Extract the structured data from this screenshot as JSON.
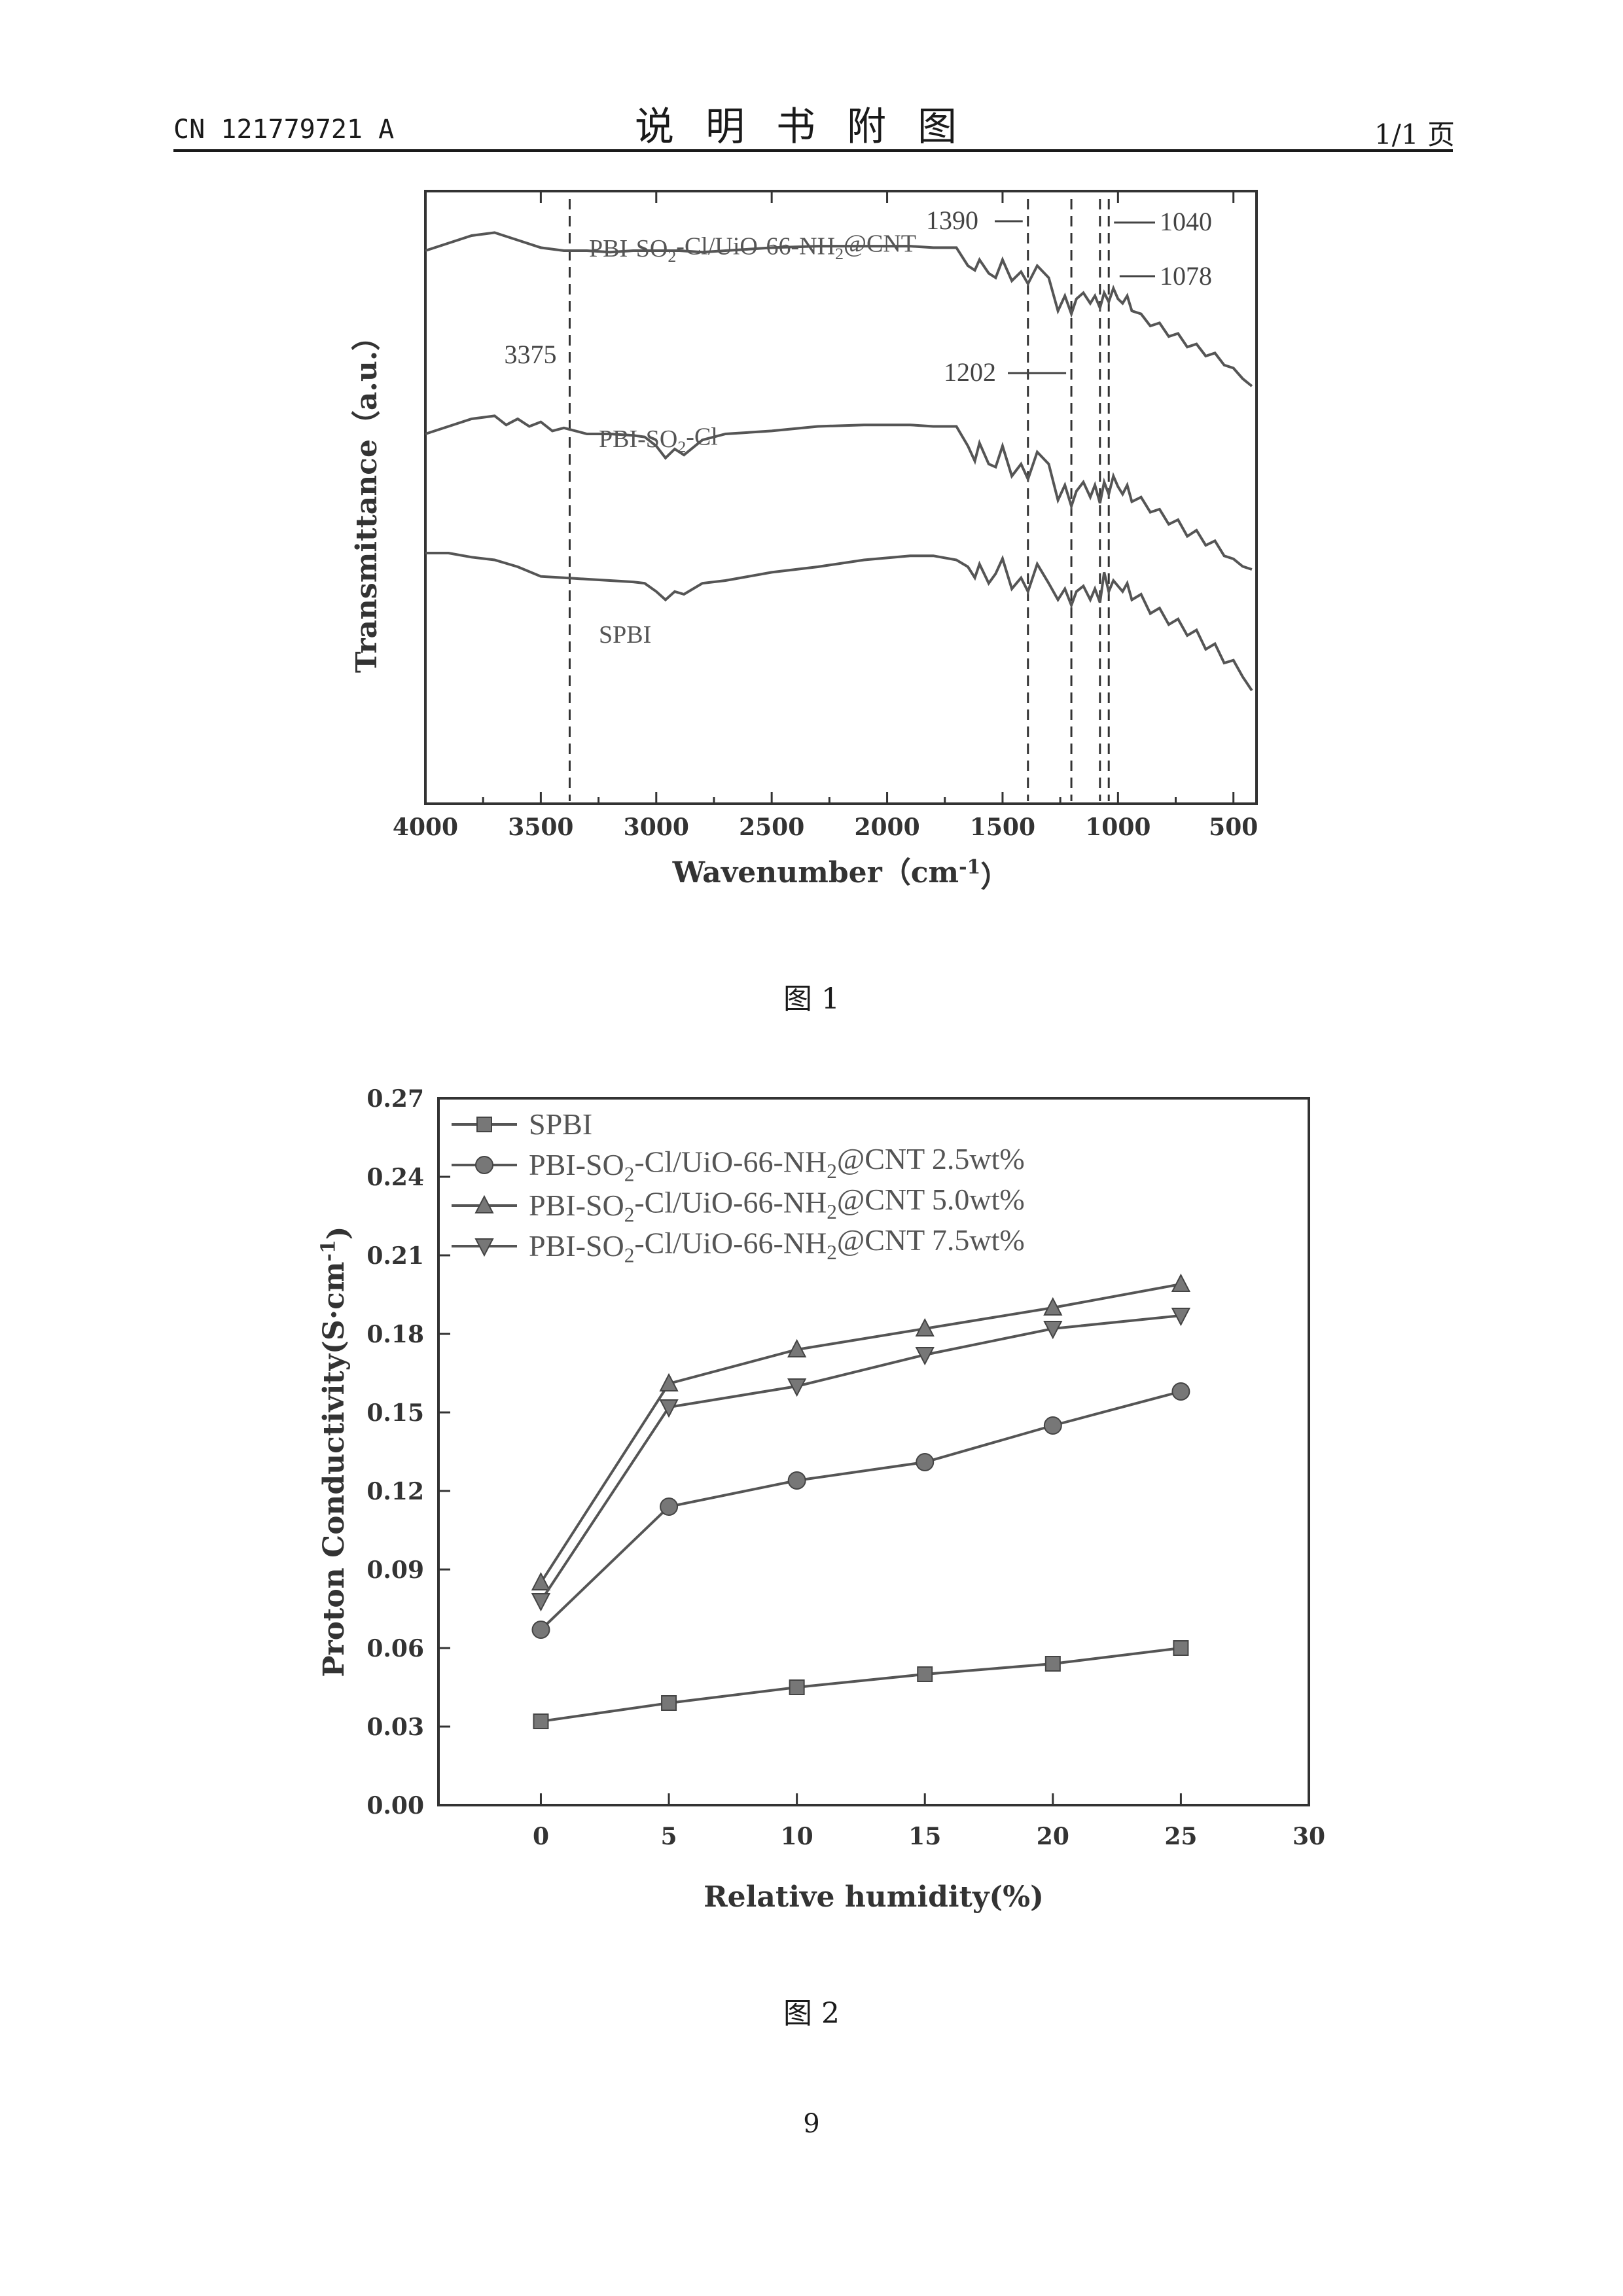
{
  "header": {
    "patent_number": "CN 121779721 A",
    "section_title": "说明书附图",
    "page_of": "1/1 页"
  },
  "figure1": {
    "caption": "图 1",
    "chart_data": {
      "type": "line",
      "title": "",
      "xlabel": "Wavenumber（cm⁻¹）",
      "ylabel": "Transmittance（a.u.）",
      "xlim": [
        4000,
        400
      ],
      "x_ticks": [
        4000,
        3500,
        3000,
        2500,
        2000,
        1500,
        1000,
        500
      ],
      "x_tick_labels": [
        "4000",
        "3500",
        "3000",
        "2500",
        "2000",
        "1500",
        "1000",
        "500"
      ],
      "reference_lines": [
        3375,
        1390,
        1202,
        1078,
        1040
      ],
      "annotations": [
        {
          "text": "3375",
          "x": 3375
        },
        {
          "text": "1390",
          "x": 1390
        },
        {
          "text": "1202",
          "x": 1202
        },
        {
          "text": "1078",
          "x": 1078
        },
        {
          "text": "1040",
          "x": 1040
        }
      ],
      "series": [
        {
          "name": "PBI-SO₂-Cl/UiO-66-NH₂@CNT",
          "x": [
            4000,
            3900,
            3800,
            3700,
            3600,
            3500,
            3400,
            3300,
            3200,
            3100,
            3000,
            2900,
            2800,
            2700,
            2500,
            2300,
            2100,
            1900,
            1800,
            1700,
            1650,
            1620,
            1600,
            1560,
            1530,
            1500,
            1460,
            1420,
            1390,
            1350,
            1300,
            1260,
            1230,
            1202,
            1180,
            1150,
            1120,
            1100,
            1078,
            1060,
            1040,
            1020,
            1000,
            980,
            960,
            940,
            900,
            860,
            820,
            780,
            740,
            700,
            660,
            620,
            580,
            540,
            500,
            460,
            420
          ],
          "y": [
            0.9,
            0.95,
            1.0,
            1.02,
            0.97,
            0.92,
            0.9,
            0.9,
            0.89,
            0.9,
            0.9,
            0.9,
            0.89,
            0.9,
            0.92,
            0.93,
            0.93,
            0.93,
            0.92,
            0.92,
            0.8,
            0.77,
            0.84,
            0.75,
            0.72,
            0.84,
            0.7,
            0.76,
            0.68,
            0.8,
            0.72,
            0.5,
            0.6,
            0.48,
            0.58,
            0.62,
            0.55,
            0.6,
            0.52,
            0.62,
            0.56,
            0.65,
            0.58,
            0.55,
            0.6,
            0.5,
            0.48,
            0.4,
            0.42,
            0.33,
            0.35,
            0.26,
            0.28,
            0.2,
            0.22,
            0.14,
            0.12,
            0.05,
            0.0
          ]
        },
        {
          "name": "PBI-SO₂-Cl",
          "x": [
            4000,
            3900,
            3800,
            3700,
            3650,
            3600,
            3550,
            3500,
            3450,
            3400,
            3300,
            3200,
            3100,
            3050,
            3000,
            2960,
            2920,
            2880,
            2800,
            2700,
            2500,
            2300,
            2100,
            1900,
            1800,
            1700,
            1650,
            1620,
            1600,
            1560,
            1530,
            1500,
            1460,
            1420,
            1390,
            1350,
            1300,
            1260,
            1230,
            1202,
            1180,
            1150,
            1120,
            1100,
            1078,
            1060,
            1040,
            1020,
            1000,
            980,
            960,
            940,
            900,
            860,
            820,
            780,
            740,
            700,
            660,
            620,
            580,
            540,
            500,
            460,
            420
          ],
          "y": [
            0.9,
            0.95,
            1.0,
            1.02,
            0.96,
            1.0,
            0.95,
            0.98,
            0.92,
            0.94,
            0.9,
            0.9,
            0.89,
            0.88,
            0.82,
            0.74,
            0.8,
            0.76,
            0.86,
            0.9,
            0.92,
            0.95,
            0.96,
            0.96,
            0.95,
            0.95,
            0.82,
            0.72,
            0.84,
            0.7,
            0.68,
            0.82,
            0.62,
            0.7,
            0.6,
            0.78,
            0.7,
            0.46,
            0.56,
            0.42,
            0.52,
            0.58,
            0.48,
            0.56,
            0.44,
            0.58,
            0.5,
            0.62,
            0.55,
            0.5,
            0.56,
            0.45,
            0.48,
            0.38,
            0.4,
            0.3,
            0.33,
            0.22,
            0.26,
            0.16,
            0.19,
            0.09,
            0.07,
            0.02,
            0.0
          ]
        },
        {
          "name": "SPBI",
          "x": [
            4000,
            3900,
            3800,
            3700,
            3600,
            3500,
            3400,
            3300,
            3200,
            3100,
            3050,
            3000,
            2960,
            2920,
            2880,
            2800,
            2700,
            2500,
            2300,
            2100,
            1900,
            1800,
            1700,
            1650,
            1620,
            1600,
            1560,
            1530,
            1500,
            1460,
            1420,
            1390,
            1350,
            1300,
            1260,
            1230,
            1202,
            1180,
            1150,
            1120,
            1100,
            1078,
            1060,
            1040,
            1020,
            1000,
            980,
            960,
            940,
            900,
            860,
            820,
            780,
            740,
            700,
            660,
            620,
            580,
            540,
            500,
            460,
            420
          ],
          "y": [
            1.0,
            1.0,
            0.97,
            0.95,
            0.9,
            0.83,
            0.82,
            0.81,
            0.8,
            0.79,
            0.78,
            0.72,
            0.66,
            0.72,
            0.7,
            0.78,
            0.8,
            0.86,
            0.9,
            0.95,
            0.98,
            0.98,
            0.95,
            0.9,
            0.82,
            0.92,
            0.78,
            0.85,
            0.96,
            0.74,
            0.82,
            0.72,
            0.92,
            0.78,
            0.66,
            0.74,
            0.62,
            0.72,
            0.76,
            0.66,
            0.74,
            0.64,
            0.86,
            0.72,
            0.8,
            0.76,
            0.72,
            0.78,
            0.66,
            0.7,
            0.56,
            0.6,
            0.48,
            0.52,
            0.4,
            0.44,
            0.3,
            0.34,
            0.2,
            0.22,
            0.1,
            0.0
          ]
        }
      ]
    }
  },
  "figure2": {
    "caption": "图 2",
    "chart_data": {
      "type": "line",
      "title": "",
      "xlabel": "Relative humidity(%)",
      "ylabel": "Proton Conductivity(S·cm⁻¹)",
      "xlim": [
        -4,
        30
      ],
      "ylim": [
        0.0,
        0.27
      ],
      "x_ticks": [
        0,
        5,
        10,
        15,
        20,
        25,
        30
      ],
      "x_tick_labels": [
        "0",
        "5",
        "10",
        "15",
        "20",
        "25",
        "30"
      ],
      "y_ticks": [
        0.0,
        0.03,
        0.06,
        0.09,
        0.12,
        0.15,
        0.18,
        0.21,
        0.24,
        0.27
      ],
      "y_tick_labels": [
        "0.00",
        "0.03",
        "0.06",
        "0.09",
        "0.12",
        "0.15",
        "0.18",
        "0.21",
        "0.24",
        "0.27"
      ],
      "legend_position": "top-left",
      "x": [
        0,
        5,
        10,
        15,
        20,
        25
      ],
      "series": [
        {
          "name": "SPBI",
          "marker": "square",
          "values": [
            0.032,
            0.039,
            0.045,
            0.05,
            0.054,
            0.06
          ]
        },
        {
          "name": "PBI-SO₂-Cl/UiO-66-NH₂@CNT 2.5wt%",
          "marker": "circle",
          "values": [
            0.067,
            0.114,
            0.124,
            0.131,
            0.145,
            0.158
          ]
        },
        {
          "name": "PBI-SO₂-Cl/UiO-66-NH₂@CNT 5.0wt%",
          "marker": "triangle-up",
          "values": [
            0.085,
            0.161,
            0.174,
            0.182,
            0.19,
            0.199
          ]
        },
        {
          "name": "PBI-SO₂-Cl/UiO-66-NH₂@CNT 7.5wt%",
          "marker": "triangle-down",
          "values": [
            0.078,
            0.152,
            0.16,
            0.172,
            0.182,
            0.187
          ]
        }
      ]
    }
  },
  "footer": {
    "page_number": "9"
  }
}
